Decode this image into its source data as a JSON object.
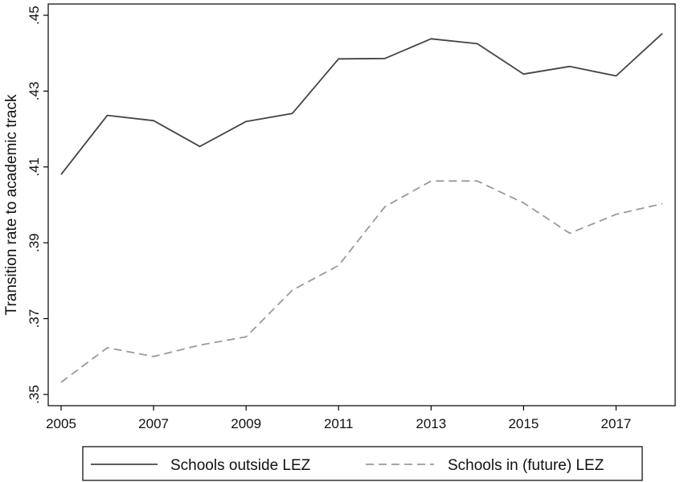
{
  "chart_data": {
    "type": "line",
    "title": "",
    "xlabel": "",
    "ylabel": "Transition rate to academic track",
    "x": [
      2005,
      2006,
      2007,
      2008,
      2009,
      2010,
      2011,
      2012,
      2013,
      2014,
      2015,
      2016,
      2017,
      2018
    ],
    "xticks": [
      2005,
      2007,
      2009,
      2011,
      2013,
      2015,
      2017
    ],
    "xtick_labels": [
      "2005",
      "2007",
      "2009",
      "2011",
      "2013",
      "2015",
      "2017"
    ],
    "xlim": [
      2005,
      2018
    ],
    "yticks": [
      0.35,
      0.37,
      0.39,
      0.41,
      0.43,
      0.45
    ],
    "ytick_labels": [
      ".35",
      ".37",
      ".39",
      ".41",
      ".43",
      ".45"
    ],
    "ylim": [
      0.35,
      0.45
    ],
    "grid": false,
    "legend_position": "bottom",
    "series": [
      {
        "name": "Schools outside LEZ",
        "style": "solid",
        "color": "#444444",
        "values": [
          0.408,
          0.4236,
          0.4222,
          0.4154,
          0.422,
          0.4241,
          0.4385,
          0.4386,
          0.4438,
          0.4425,
          0.4345,
          0.4365,
          0.434,
          0.4452
        ]
      },
      {
        "name": "Schools in (future) LEZ",
        "style": "dashed",
        "color": "#9a9a9a",
        "values": [
          0.3532,
          0.3623,
          0.36,
          0.363,
          0.3652,
          0.3775,
          0.384,
          0.3995,
          0.4063,
          0.4063,
          0.4005,
          0.3925,
          0.3975,
          0.4003
        ]
      }
    ]
  }
}
